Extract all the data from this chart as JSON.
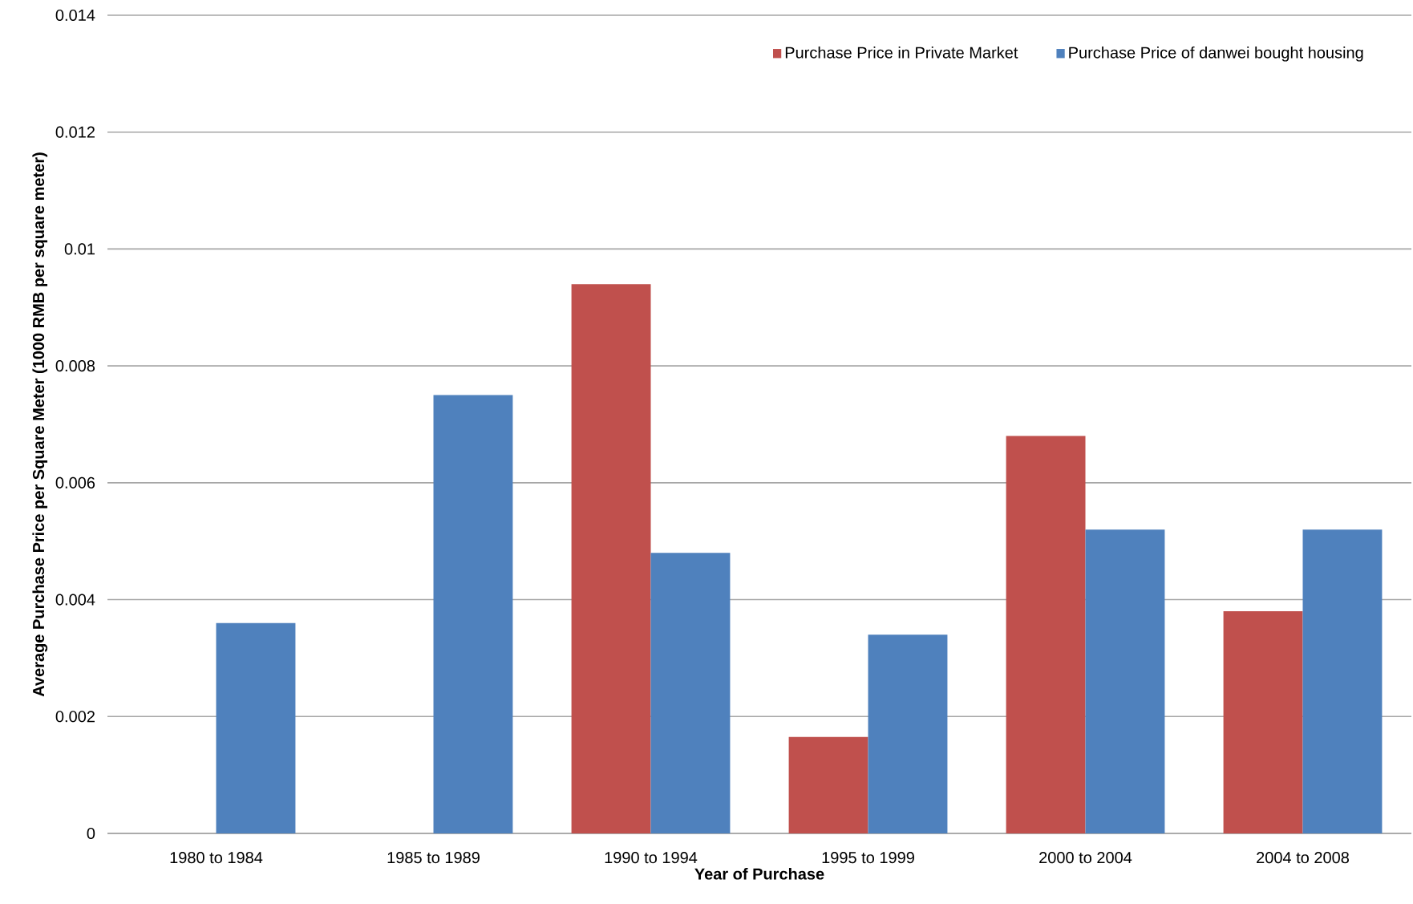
{
  "chart_data": {
    "type": "bar",
    "xlabel": "Year of Purchase",
    "ylabel": "Average Purchase Price per Square Meter (1000 RMB per square meter)",
    "categories": [
      "1980 to 1984",
      "1985 to 1989",
      "1990 to 1994",
      "1995 to 1999",
      "2000 to 2004",
      "2004 to 2008"
    ],
    "series": [
      {
        "name": "Purchase Price in Private Market",
        "color": "#c0504d",
        "values": [
          null,
          null,
          0.0094,
          0.00165,
          0.0068,
          0.0038
        ]
      },
      {
        "name": "Purchase Price of danwei bought housing",
        "color": "#4f81bd",
        "values": [
          0.0036,
          0.0075,
          0.0048,
          0.0034,
          0.0052,
          0.0052
        ]
      }
    ],
    "ylim": [
      0,
      0.014
    ],
    "yticks": [
      0,
      0.002,
      0.004,
      0.006,
      0.008,
      0.01,
      0.012,
      0.014
    ],
    "grid": "y",
    "legend": "top right"
  }
}
